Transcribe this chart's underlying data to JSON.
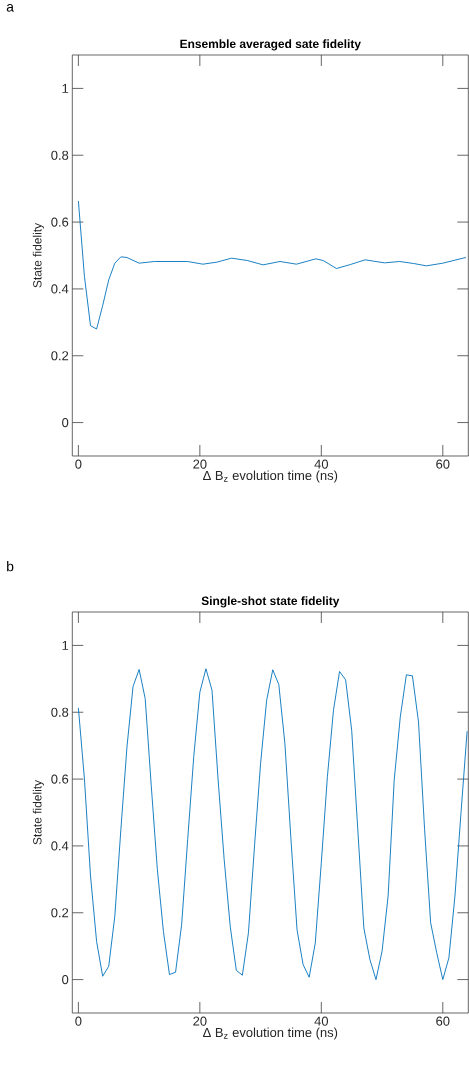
{
  "chart_data": [
    {
      "type": "line",
      "title": "Ensemble averaged sate fidelity",
      "xlabel": "Δ B$_{z}$ evolution time (ns)",
      "ylabel": "State fidelity",
      "annotations": [
        "a"
      ],
      "color": "#0072bd",
      "x": [
        0,
        1,
        2,
        3,
        4,
        5,
        6,
        7,
        8,
        10,
        12.5,
        15,
        18,
        20.5,
        22.8,
        25.2,
        27.8,
        30.4,
        33.2,
        35.9,
        39.1,
        40.3,
        42.5,
        44.8,
        47.2,
        50.4,
        52.9,
        55.2,
        57.3,
        60,
        62,
        63.8
      ],
      "values": [
        0.663,
        0.437,
        0.29,
        0.28,
        0.35,
        0.427,
        0.477,
        0.496,
        0.494,
        0.477,
        0.482,
        0.482,
        0.482,
        0.474,
        0.48,
        0.492,
        0.485,
        0.472,
        0.482,
        0.474,
        0.49,
        0.485,
        0.461,
        0.473,
        0.487,
        0.478,
        0.482,
        0.476,
        0.469,
        0.477,
        0.486,
        0.494
      ],
      "xlim": [
        -1,
        64.2
      ],
      "ylim": [
        -0.1,
        1.1
      ],
      "xticks": [
        0,
        20,
        40,
        60
      ],
      "yticks": [
        0,
        0.2,
        0.4,
        0.6,
        0.8,
        1
      ]
    },
    {
      "type": "line",
      "title": "Single-shot state fidelity",
      "xlabel": "Δ B$_{z}$ evolution time (ns)",
      "ylabel": "State fidelity",
      "annotations": [
        "b"
      ],
      "color": "#0072bd",
      "x": [
        0,
        1,
        2,
        3,
        4,
        5,
        6,
        7,
        8,
        9,
        10,
        11,
        12,
        13,
        14,
        15,
        16,
        17,
        18,
        19,
        20,
        21,
        22,
        23,
        24,
        25,
        26,
        27,
        28,
        29,
        30,
        31,
        32,
        33,
        34,
        35,
        36,
        37,
        38,
        39,
        40,
        41,
        42,
        43,
        44,
        45,
        46,
        47,
        48,
        49,
        50,
        51,
        52,
        53,
        54,
        55,
        56,
        57,
        58,
        59,
        60,
        61,
        62,
        63,
        64
      ],
      "values": [
        0.813,
        0.6,
        0.31,
        0.114,
        0.01,
        0.04,
        0.19,
        0.45,
        0.696,
        0.877,
        0.928,
        0.841,
        0.58,
        0.33,
        0.144,
        0.015,
        0.022,
        0.164,
        0.42,
        0.668,
        0.86,
        0.93,
        0.866,
        0.6,
        0.36,
        0.159,
        0.028,
        0.013,
        0.14,
        0.4,
        0.647,
        0.836,
        0.927,
        0.883,
        0.707,
        0.42,
        0.149,
        0.045,
        0.007,
        0.109,
        0.35,
        0.607,
        0.806,
        0.922,
        0.897,
        0.746,
        0.45,
        0.154,
        0.06,
        0.0,
        0.085,
        0.25,
        0.597,
        0.786,
        0.912,
        0.909,
        0.771,
        0.45,
        0.17,
        0.08,
        0.0,
        0.065,
        0.25,
        0.5,
        0.743
      ],
      "xlim": [
        -1,
        64.2
      ],
      "ylim": [
        -0.1,
        1.1
      ],
      "xticks": [
        0,
        20,
        40,
        60
      ],
      "yticks": [
        0,
        0.2,
        0.4,
        0.6,
        0.8,
        1
      ]
    }
  ]
}
